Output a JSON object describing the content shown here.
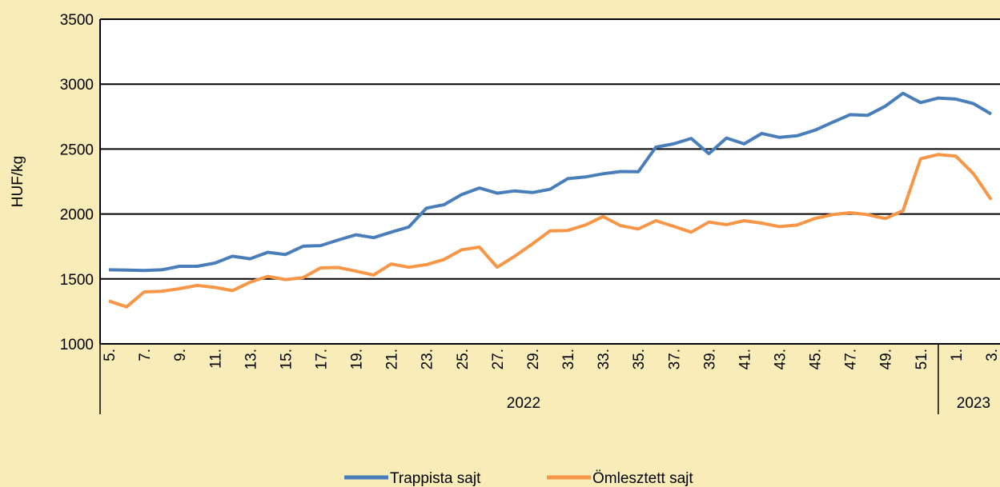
{
  "chart_data": {
    "type": "line",
    "y_label": "HUF/kg",
    "categories": [
      "5.",
      null,
      "7.",
      null,
      "9.",
      null,
      "11.",
      null,
      "13.",
      null,
      "15.",
      null,
      "17.",
      null,
      "19.",
      null,
      "21.",
      null,
      "23.",
      null,
      "25.",
      null,
      "27.",
      null,
      "29.",
      null,
      "31.",
      null,
      "33.",
      null,
      "35.",
      null,
      "37.",
      null,
      "39.",
      null,
      "41.",
      null,
      "43.",
      null,
      "45.",
      null,
      "47.",
      null,
      "49.",
      null,
      "51.",
      null,
      "1.",
      null,
      "3."
    ],
    "x_groups": [
      {
        "label": "2022",
        "span": 48
      },
      {
        "label": "2023",
        "span": 3
      }
    ],
    "series": [
      {
        "name": "Trappista sajt",
        "color": "#4a7ebb",
        "values": [
          1570,
          1568,
          1565,
          1570,
          1597,
          1597,
          1622,
          1675,
          1655,
          1705,
          1688,
          1752,
          1757,
          1800,
          1840,
          1818,
          1860,
          1900,
          2045,
          2072,
          2150,
          2200,
          2160,
          2178,
          2165,
          2190,
          2272,
          2285,
          2310,
          2327,
          2325,
          2515,
          2540,
          2582,
          2465,
          2585,
          2540,
          2620,
          2590,
          2602,
          2645,
          2705,
          2765,
          2760,
          2830,
          2930,
          2858,
          2893,
          2885,
          2850,
          2770
        ]
      },
      {
        "name": "Ömlesztett sajt",
        "color": "#f79646",
        "values": [
          1330,
          1285,
          1400,
          1405,
          1425,
          1450,
          1435,
          1410,
          1475,
          1520,
          1495,
          1510,
          1585,
          1588,
          1560,
          1530,
          1615,
          1590,
          1610,
          1650,
          1725,
          1745,
          1590,
          1675,
          1770,
          1870,
          1873,
          1915,
          1980,
          1910,
          1885,
          1948,
          1905,
          1860,
          1938,
          1918,
          1948,
          1930,
          1903,
          1915,
          1965,
          1995,
          2010,
          1995,
          1965,
          2025,
          2425,
          2458,
          2445,
          2310,
          2110
        ]
      }
    ],
    "ylim": [
      1000,
      3500
    ],
    "yticks": [
      1000,
      1500,
      2000,
      2500,
      3000,
      3500
    ],
    "grid": true
  }
}
